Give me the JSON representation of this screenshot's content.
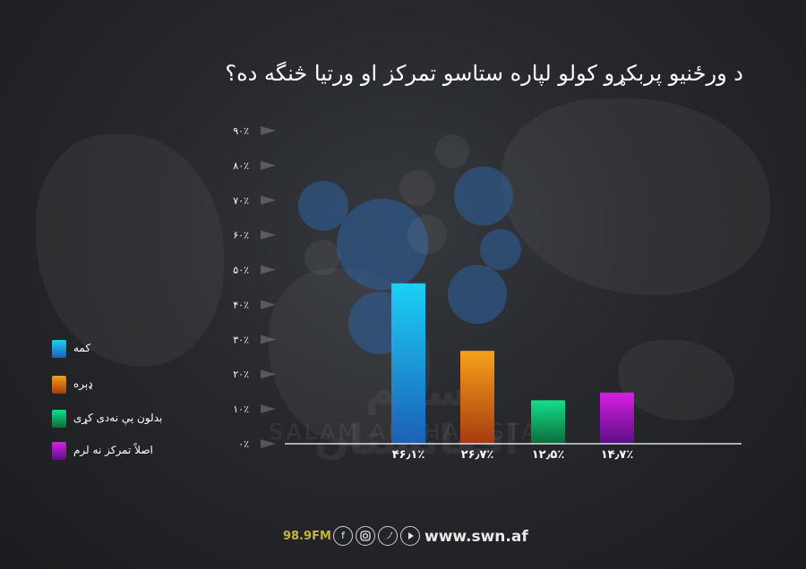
{
  "chart_data": {
    "type": "bar",
    "title": "د ورځنيو پربکړو کولو لپاره ستاسو تمرکز او ورتيا څنگه ده؟",
    "categories": [
      "کمه",
      "ډېره",
      "بدلون يې نه‌دی کړی",
      "اصلاً تمرکز نه لرم"
    ],
    "values": [
      46.1,
      26.7,
      12.5,
      14.7
    ],
    "value_labels": [
      "۴۶٫۱٪",
      "۲۶٫۷٪",
      "۱۲٫۵٪",
      "۱۴٫۷٪"
    ],
    "colors": {
      "کمه": [
        "#1bd0f5",
        "#1b5fb8"
      ],
      "ډېره": [
        "#f7a11a",
        "#a63b0f"
      ],
      "بدلون يې نه‌دی کړی": [
        "#12e08a",
        "#0c6b3a"
      ],
      "اصلاً تمرکز نه لرم": [
        "#d81fe0",
        "#5a0e86"
      ]
    },
    "ylim": [
      0,
      90
    ],
    "yticks": [
      0,
      10,
      20,
      30,
      40,
      50,
      60,
      70,
      80,
      90
    ],
    "ytick_labels": [
      "۰٪",
      "۱۰٪",
      "۲۰٪",
      "۳۰٪",
      "۴۰٪",
      "۵۰٪",
      "۶۰٪",
      "۷۰٪",
      "۸۰٪",
      "۹۰٪"
    ],
    "legend_position": "left",
    "grid": false
  },
  "legend": {
    "items": [
      {
        "label": "کمه",
        "color_top": "#1bd0f5",
        "color_bottom": "#1b5fb8"
      },
      {
        "label": "ډېره",
        "color_top": "#f7a11a",
        "color_bottom": "#a63b0f"
      },
      {
        "label": "بدلون يې نه‌دی کړی",
        "color_top": "#12e08a",
        "color_bottom": "#0c6b3a"
      },
      {
        "label": "اصلاً تمرکز نه لرم",
        "color_top": "#d81fe0",
        "color_bottom": "#5a0e86"
      }
    ]
  },
  "watermark": {
    "brand_fa": "سلام افغانستان",
    "brand_en": "SALAM AFGHANISTAN"
  },
  "footer": {
    "frequency": "98.9FM",
    "website": "www.swn.af",
    "social_icons": [
      "facebook-icon",
      "instagram-icon",
      "twitter-icon",
      "youtube-icon"
    ]
  },
  "colors": {
    "background": "#26282c",
    "accent_fm": "#c8b53a",
    "text": "#ffffff"
  }
}
